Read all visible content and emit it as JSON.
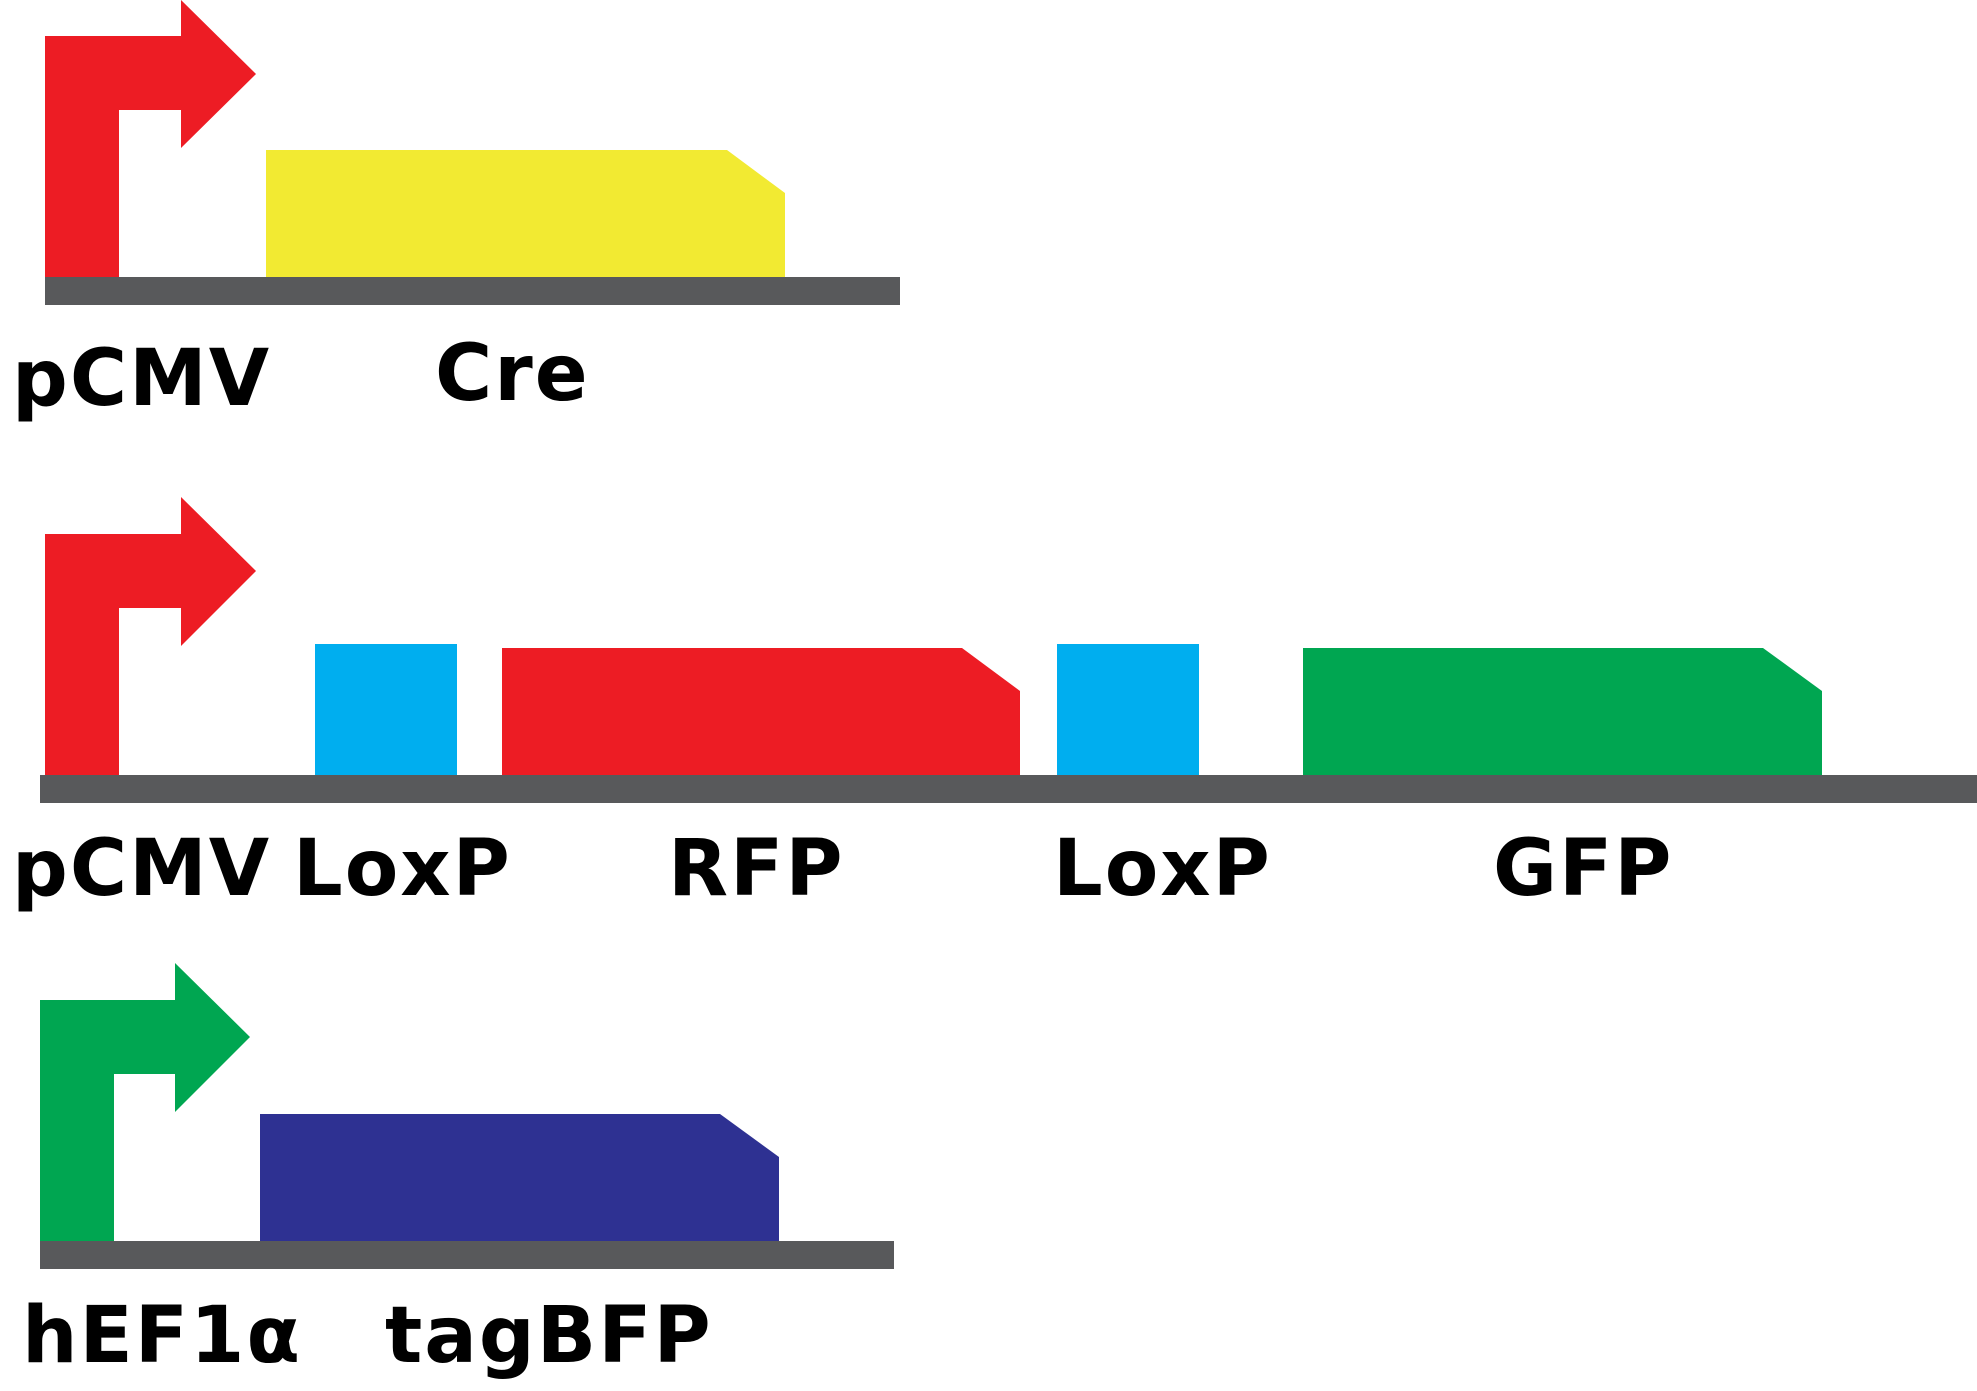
{
  "constructs": [
    {
      "id": "cre",
      "promoter": {
        "label": "pCMV",
        "color": "#ED1C24"
      },
      "backbone_color": "#58595B",
      "parts": [
        {
          "kind": "gene",
          "label": "Cre",
          "color": "#F2EA32"
        }
      ]
    },
    {
      "id": "reporter",
      "promoter": {
        "label": "pCMV",
        "color": "#ED1C24"
      },
      "backbone_color": "#58595B",
      "parts": [
        {
          "kind": "site",
          "label": "LoxP",
          "color": "#00AEEF"
        },
        {
          "kind": "gene",
          "label": "RFP",
          "color": "#ED1C24"
        },
        {
          "kind": "site",
          "label": "LoxP",
          "color": "#00AEEF"
        },
        {
          "kind": "gene",
          "label": "GFP",
          "color": "#00A651"
        }
      ]
    },
    {
      "id": "tagbfp",
      "promoter": {
        "label": "hEF1α",
        "color": "#00A651"
      },
      "backbone_color": "#58595B",
      "parts": [
        {
          "kind": "gene",
          "label": "tagBFP",
          "color": "#2E3192"
        }
      ]
    }
  ]
}
